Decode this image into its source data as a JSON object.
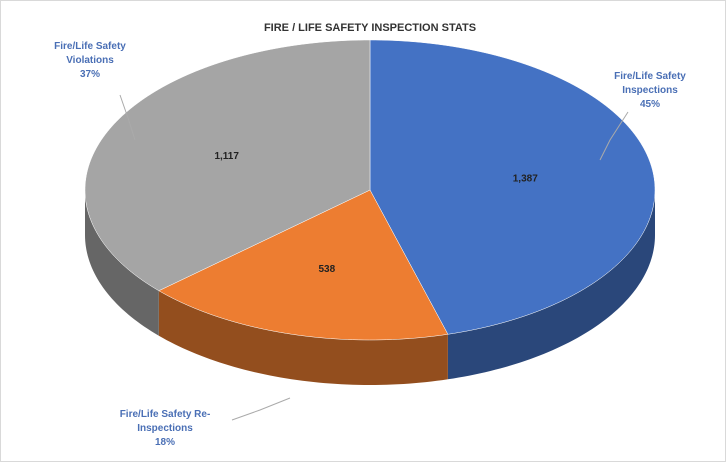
{
  "chart_data": {
    "type": "pie3d",
    "title": "FIRE / LIFE SAFETY INSPECTION STATS",
    "categories": [
      "Fire/Life Safety Inspections",
      "Fire/Life Safety Re-Inspections",
      "Fire/Life Safety Violations"
    ],
    "values": [
      1387,
      538,
      1117
    ],
    "value_labels": [
      "1,387",
      "538",
      "1,117"
    ],
    "percent_labels": [
      "45%",
      "18%",
      "37%"
    ],
    "colors": [
      "#4472c4",
      "#ed7d31",
      "#a5a5a5"
    ]
  }
}
